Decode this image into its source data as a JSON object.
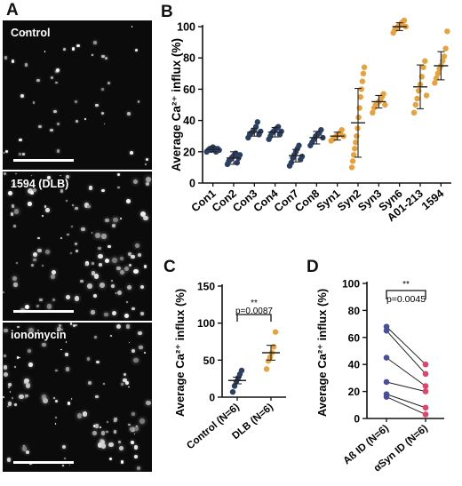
{
  "panels": {
    "A": "A",
    "B": "B",
    "C": "C",
    "D": "D"
  },
  "micrographs": [
    {
      "label": "Control",
      "spot_density": "low"
    },
    {
      "label": "1594 (DLB)",
      "spot_density": "high"
    },
    {
      "label": "ionomycin",
      "spot_density": "high"
    }
  ],
  "colors": {
    "control": "#2b3f63",
    "synuclein": "#e8a23b",
    "pair_top": "#4a4f9c",
    "pair_bottom": "#e1446b"
  },
  "chart_data": [
    {
      "panel": "B",
      "type": "scatter",
      "ylabel": "Average Ca²⁺ influx (%)",
      "ylim": [
        0,
        100
      ],
      "yticks": [
        0,
        20,
        40,
        60,
        80,
        100
      ],
      "categories": [
        "Con1",
        "Con2",
        "Con3",
        "Con4",
        "Con7",
        "Con8",
        "Syn1",
        "Syn2",
        "Syn3",
        "Syn6",
        "A01-213",
        "1594"
      ],
      "groups": [
        "control",
        "control",
        "control",
        "control",
        "control",
        "control",
        "synuclein",
        "synuclein",
        "synuclein",
        "synuclein",
        "synuclein",
        "synuclein"
      ],
      "mean": [
        21.5,
        16,
        32.5,
        32.5,
        17.5,
        29,
        30,
        38.5,
        52,
        100,
        61.5,
        75
      ],
      "sd": [
        1.5,
        4,
        2.5,
        3,
        4,
        4,
        2.5,
        22,
        4,
        2.5,
        14,
        9
      ],
      "values": [
        [
          20,
          21,
          22,
          21,
          23,
          22,
          20,
          22,
          21
        ],
        [
          12,
          14,
          15,
          16,
          17,
          18,
          19,
          13,
          16,
          18
        ],
        [
          29,
          31,
          32,
          33,
          34,
          36,
          39,
          31,
          33
        ],
        [
          28,
          30,
          32,
          33,
          34,
          35,
          36,
          31,
          33
        ],
        [
          11,
          13,
          16,
          18,
          20,
          22,
          24,
          15,
          17
        ],
        [
          24,
          26,
          28,
          30,
          31,
          32,
          34,
          29
        ],
        [
          27,
          28,
          29,
          30,
          31,
          32,
          34,
          30
        ],
        [
          10,
          14,
          18,
          22,
          26,
          30,
          35,
          42,
          48,
          55,
          60,
          65,
          70,
          74
        ],
        [
          45,
          48,
          50,
          51,
          52,
          53,
          55,
          57,
          50
        ],
        [
          96,
          98,
          99,
          100,
          101,
          102,
          103,
          104,
          100
        ],
        [
          45,
          50,
          54,
          59,
          63,
          68,
          74,
          78,
          56
        ],
        [
          64,
          67,
          70,
          73,
          75,
          78,
          81,
          86,
          97
        ]
      ]
    },
    {
      "panel": "C",
      "type": "scatter",
      "ylabel": "Average Ca²⁺ influx (%)",
      "ylim": [
        0,
        150
      ],
      "yticks": [
        0,
        50,
        100,
        150
      ],
      "categories": [
        "Control (N=6)",
        "DLB (N=6)"
      ],
      "series": [
        {
          "values": [
            7,
            15,
            21,
            26,
            31,
            36
          ],
          "mean": 22.5,
          "sem": 4.5
        },
        {
          "values": [
            38,
            49,
            54,
            60,
            68,
            88
          ],
          "mean": 60,
          "sem": 10
        }
      ],
      "significance": {
        "stars": "**",
        "p": "p=0.0087"
      }
    },
    {
      "panel": "D",
      "type": "scatter",
      "ylabel": "Average Ca²⁺ influx (%)",
      "ylim": [
        0,
        100
      ],
      "yticks": [
        0,
        20,
        40,
        60,
        80,
        100
      ],
      "categories": [
        "Aß ID (N=6)",
        "αSyn ID (N=6)"
      ],
      "pairs": [
        [
          68,
          40
        ],
        [
          65,
          33
        ],
        [
          45,
          24
        ],
        [
          27,
          20
        ],
        [
          18,
          8
        ],
        [
          16,
          3
        ]
      ],
      "significance": {
        "stars": "**",
        "p": "p=0.0045"
      }
    }
  ]
}
